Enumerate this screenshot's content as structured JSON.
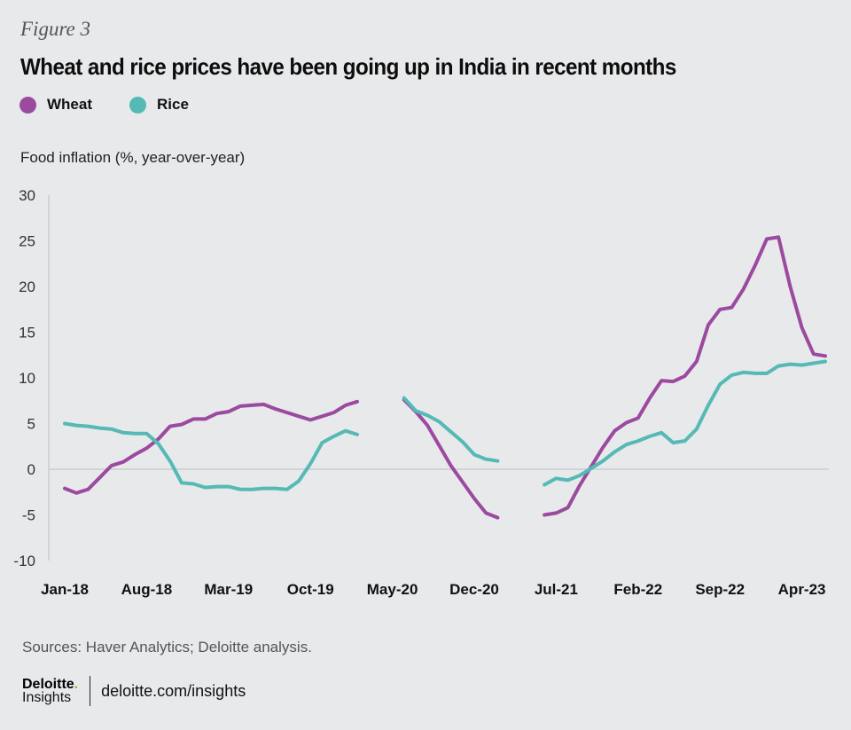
{
  "figure_label": "Figure 3",
  "title": "Wheat and rice prices have been going up in India in recent months",
  "source": "Sources: Haver Analytics; Deloitte analysis.",
  "footer": {
    "logo_main": "Deloitte",
    "logo_dot": ".",
    "logo_sub": "Insights",
    "link": "deloitte.com/insights"
  },
  "colors": {
    "wheat": "#9b4a9f",
    "rice": "#55b9b5",
    "background": "#e8e9eb",
    "axis": "#d2d3d5"
  },
  "chart_data": {
    "type": "line",
    "title": "Wheat and rice prices have been going up in India in recent months",
    "xlabel": "",
    "ylabel": "Food inflation (%, year-over-year)",
    "ylim": [
      -10,
      30
    ],
    "yticks": [
      30,
      25,
      20,
      15,
      10,
      5,
      0,
      -5,
      -10
    ],
    "x_start": "Jan-18",
    "x_end": "Jun-23",
    "n_months": 66,
    "xtick_labels": [
      {
        "label": "Jan-18",
        "month_index": 0
      },
      {
        "label": "Aug-18",
        "month_index": 7
      },
      {
        "label": "Mar-19",
        "month_index": 14
      },
      {
        "label": "Oct-19",
        "month_index": 21
      },
      {
        "label": "May-20",
        "month_index": 28
      },
      {
        "label": "Dec-20",
        "month_index": 35
      },
      {
        "label": "Jul-21",
        "month_index": 42
      },
      {
        "label": "Feb-22",
        "month_index": 49
      },
      {
        "label": "Sep-22",
        "month_index": 56
      },
      {
        "label": "Apr-23",
        "month_index": 63
      }
    ],
    "legend": "top-left",
    "grid": false,
    "series": [
      {
        "name": "Wheat",
        "color": "#9b4a9f",
        "segments": [
          {
            "start_month_index": 0,
            "values": [
              -2.1,
              -2.6,
              -2.2,
              -0.9,
              0.4,
              0.8,
              1.6,
              2.3,
              3.3,
              4.7,
              4.9,
              5.5,
              5.5,
              6.1,
              6.3,
              6.9,
              7.0,
              7.1,
              6.6,
              6.2,
              5.8,
              5.4,
              5.8,
              6.2,
              7.0,
              7.4
            ]
          },
          {
            "start_month_index": 29,
            "values": [
              7.6,
              6.3,
              4.8,
              2.6,
              0.4,
              -1.4,
              -3.2,
              -4.8,
              -5.3
            ]
          },
          {
            "start_month_index": 41,
            "values": [
              -5.0,
              -4.8,
              -4.2,
              -1.8,
              0.3,
              2.4,
              4.2,
              5.1,
              5.6,
              7.8,
              9.7,
              9.6,
              10.2,
              11.8,
              15.8,
              17.5,
              17.7,
              19.7,
              22.3,
              25.2,
              25.4,
              20.0,
              15.5,
              12.6,
              12.4
            ]
          }
        ]
      },
      {
        "name": "Rice",
        "color": "#55b9b5",
        "segments": [
          {
            "start_month_index": 0,
            "values": [
              5.0,
              4.8,
              4.7,
              4.5,
              4.4,
              4.0,
              3.9,
              3.9,
              2.8,
              0.9,
              -1.5,
              -1.6,
              -2.0,
              -1.9,
              -1.9,
              -2.2,
              -2.2,
              -2.1,
              -2.1,
              -2.2,
              -1.3,
              0.6,
              2.9,
              3.6,
              4.2,
              3.8
            ]
          },
          {
            "start_month_index": 29,
            "values": [
              7.8,
              6.4,
              5.9,
              5.2,
              4.1,
              3.0,
              1.6,
              1.1,
              0.9
            ]
          },
          {
            "start_month_index": 41,
            "values": [
              -1.7,
              -1.0,
              -1.2,
              -0.7,
              0.1,
              0.9,
              1.9,
              2.7,
              3.1,
              3.6,
              4.0,
              2.9,
              3.1,
              4.4,
              7.0,
              9.3,
              10.3,
              10.6,
              10.5,
              10.5,
              11.3,
              11.5,
              11.4,
              11.6,
              11.8
            ]
          }
        ]
      }
    ]
  }
}
